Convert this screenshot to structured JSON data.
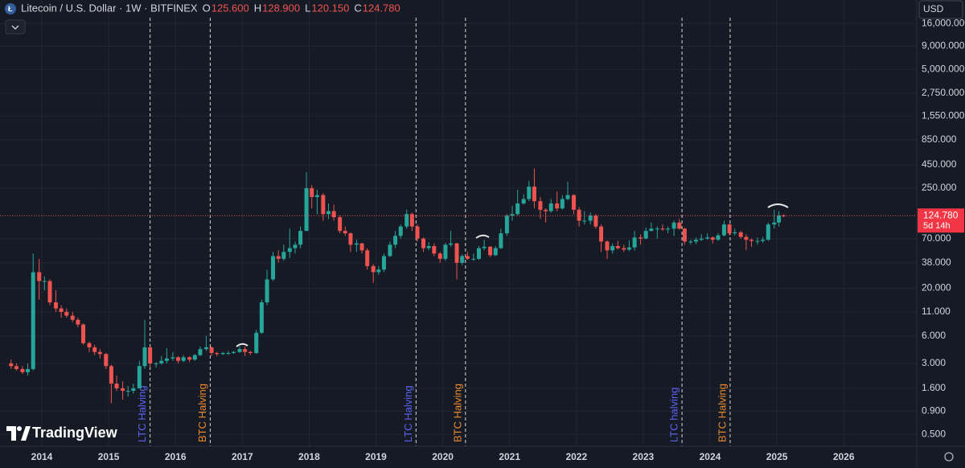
{
  "chart_data": {
    "type": "candlestick",
    "title": "Litecoin / U.S. Dollar · 1W · BITFINEX",
    "ohlc_keys": [
      "O",
      "H",
      "L",
      "C"
    ],
    "currency": "USD",
    "countdown": "5d 14h",
    "brand": "TradingView",
    "log_scale": true,
    "grid": true,
    "up_color": "#26a69a",
    "down_color": "#ef5350",
    "xlim": [
      2013.374,
      2027.093
    ],
    "xticks": [
      2014,
      2015,
      2016,
      2017,
      2018,
      2019,
      2020,
      2021,
      2022,
      2023,
      2024,
      2025,
      2026
    ],
    "ylim": [
      0.37,
      28900
    ],
    "yticks": [
      {
        "value": 16000,
        "label": "16,000.000"
      },
      {
        "value": 9000,
        "label": "9,000.000"
      },
      {
        "value": 5000,
        "label": "5,000.000"
      },
      {
        "value": 2750,
        "label": "2,750.000"
      },
      {
        "value": 1550,
        "label": "1,550.000"
      },
      {
        "value": 850,
        "label": "850.000"
      },
      {
        "value": 450,
        "label": "450.000"
      },
      {
        "value": 250,
        "label": "250.000"
      },
      {
        "value": 70,
        "label": "70.000"
      },
      {
        "value": 38,
        "label": "38.000"
      },
      {
        "value": 20,
        "label": "20.000"
      },
      {
        "value": 11,
        "label": "11.000"
      },
      {
        "value": 6,
        "label": "6.000"
      },
      {
        "value": 3,
        "label": "3.000"
      },
      {
        "value": 1.6,
        "label": "1.600"
      },
      {
        "value": 0.9,
        "label": "0.900"
      },
      {
        "value": 0.5,
        "label": "0.500"
      }
    ],
    "annotations": [
      {
        "x": 2015.62,
        "label": "LTC Halving",
        "color": "#5b63f0"
      },
      {
        "x": 2016.52,
        "label": "BTC Halving",
        "color": "#e88a2e"
      },
      {
        "x": 2019.6,
        "label": "LTC Halving",
        "color": "#5b63f0"
      },
      {
        "x": 2020.34,
        "label": "BTC Halving",
        "color": "#e88a2e"
      },
      {
        "x": 2023.58,
        "label": "LTC halving",
        "color": "#5b63f0"
      },
      {
        "x": 2024.3,
        "label": "BTC Halving",
        "color": "#e88a2e"
      }
    ],
    "candles": [
      {
        "x": 2013.54,
        "o": 3.0,
        "h": 3.3,
        "l": 2.6,
        "c": 2.8
      },
      {
        "x": 2013.62,
        "o": 2.8,
        "h": 3.0,
        "l": 2.5,
        "c": 2.6
      },
      {
        "x": 2013.71,
        "o": 2.6,
        "h": 2.8,
        "l": 2.3,
        "c": 2.4
      },
      {
        "x": 2013.79,
        "o": 2.4,
        "h": 3.0,
        "l": 2.2,
        "c": 2.6
      },
      {
        "x": 2013.87,
        "o": 2.6,
        "h": 48,
        "l": 2.5,
        "c": 30
      },
      {
        "x": 2013.96,
        "o": 30,
        "h": 42,
        "l": 15,
        "c": 24
      },
      {
        "x": 2014.04,
        "o": 24,
        "h": 27,
        "l": 19,
        "c": 24
      },
      {
        "x": 2014.12,
        "o": 24,
        "h": 25,
        "l": 13,
        "c": 14
      },
      {
        "x": 2014.21,
        "o": 14,
        "h": 19,
        "l": 11,
        "c": 12
      },
      {
        "x": 2014.29,
        "o": 12,
        "h": 13,
        "l": 9.5,
        "c": 11
      },
      {
        "x": 2014.37,
        "o": 11,
        "h": 12,
        "l": 9.5,
        "c": 10
      },
      {
        "x": 2014.46,
        "o": 10,
        "h": 11,
        "l": 8.5,
        "c": 9
      },
      {
        "x": 2014.54,
        "o": 9,
        "h": 9.5,
        "l": 7.5,
        "c": 8
      },
      {
        "x": 2014.62,
        "o": 8,
        "h": 8.2,
        "l": 4.8,
        "c": 5
      },
      {
        "x": 2014.71,
        "o": 5,
        "h": 5.2,
        "l": 4,
        "c": 4.5
      },
      {
        "x": 2014.79,
        "o": 4.5,
        "h": 4.8,
        "l": 3.7,
        "c": 4
      },
      {
        "x": 2014.87,
        "o": 4,
        "h": 4.3,
        "l": 3.4,
        "c": 3.8
      },
      {
        "x": 2014.96,
        "o": 3.8,
        "h": 3.9,
        "l": 2.6,
        "c": 2.8
      },
      {
        "x": 2015.04,
        "o": 2.8,
        "h": 2.9,
        "l": 1.1,
        "c": 1.8
      },
      {
        "x": 2015.12,
        "o": 1.8,
        "h": 2.2,
        "l": 1.5,
        "c": 1.6
      },
      {
        "x": 2015.21,
        "o": 1.6,
        "h": 1.9,
        "l": 1.2,
        "c": 1.5
      },
      {
        "x": 2015.29,
        "o": 1.5,
        "h": 1.7,
        "l": 1.3,
        "c": 1.5
      },
      {
        "x": 2015.37,
        "o": 1.5,
        "h": 1.8,
        "l": 1.4,
        "c": 1.6
      },
      {
        "x": 2015.46,
        "o": 1.6,
        "h": 3.2,
        "l": 1.6,
        "c": 2.8
      },
      {
        "x": 2015.54,
        "o": 2.8,
        "h": 9,
        "l": 2.6,
        "c": 4.5
      },
      {
        "x": 2015.62,
        "o": 4.5,
        "h": 4.6,
        "l": 2.7,
        "c": 3.0
      },
      {
        "x": 2015.71,
        "o": 3.0,
        "h": 3.1,
        "l": 2.7,
        "c": 3.0
      },
      {
        "x": 2015.79,
        "o": 3.0,
        "h": 3.6,
        "l": 2.9,
        "c": 3.2
      },
      {
        "x": 2015.87,
        "o": 3.2,
        "h": 4.4,
        "l": 3.0,
        "c": 3.4
      },
      {
        "x": 2015.96,
        "o": 3.4,
        "h": 4.0,
        "l": 3.2,
        "c": 3.5
      },
      {
        "x": 2016.04,
        "o": 3.5,
        "h": 3.6,
        "l": 3.0,
        "c": 3.2
      },
      {
        "x": 2016.12,
        "o": 3.2,
        "h": 3.7,
        "l": 3.1,
        "c": 3.5
      },
      {
        "x": 2016.21,
        "o": 3.5,
        "h": 3.6,
        "l": 3.1,
        "c": 3.3
      },
      {
        "x": 2016.29,
        "o": 3.3,
        "h": 3.8,
        "l": 3.2,
        "c": 3.7
      },
      {
        "x": 2016.37,
        "o": 3.7,
        "h": 4.6,
        "l": 3.6,
        "c": 4.3
      },
      {
        "x": 2016.46,
        "o": 4.3,
        "h": 6.0,
        "l": 4.1,
        "c": 4.5
      },
      {
        "x": 2016.54,
        "o": 4.5,
        "h": 4.6,
        "l": 3.6,
        "c": 3.9
      },
      {
        "x": 2016.62,
        "o": 3.9,
        "h": 4.0,
        "l": 3.6,
        "c": 3.8
      },
      {
        "x": 2016.71,
        "o": 3.8,
        "h": 4.0,
        "l": 3.7,
        "c": 3.9
      },
      {
        "x": 2016.79,
        "o": 3.9,
        "h": 4.1,
        "l": 3.7,
        "c": 3.9
      },
      {
        "x": 2016.87,
        "o": 3.9,
        "h": 4.1,
        "l": 3.8,
        "c": 4.0
      },
      {
        "x": 2016.96,
        "o": 4.0,
        "h": 4.6,
        "l": 3.9,
        "c": 4.3
      },
      {
        "x": 2017.04,
        "o": 4.3,
        "h": 4.6,
        "l": 3.6,
        "c": 4.0
      },
      {
        "x": 2017.12,
        "o": 4.0,
        "h": 4.1,
        "l": 3.7,
        "c": 3.9
      },
      {
        "x": 2017.21,
        "o": 3.9,
        "h": 7.0,
        "l": 3.8,
        "c": 6.5
      },
      {
        "x": 2017.29,
        "o": 6.5,
        "h": 15,
        "l": 6.3,
        "c": 14
      },
      {
        "x": 2017.37,
        "o": 14,
        "h": 32,
        "l": 13,
        "c": 25
      },
      {
        "x": 2017.46,
        "o": 25,
        "h": 50,
        "l": 24,
        "c": 45
      },
      {
        "x": 2017.54,
        "o": 45,
        "h": 52,
        "l": 38,
        "c": 42
      },
      {
        "x": 2017.62,
        "o": 42,
        "h": 60,
        "l": 40,
        "c": 50
      },
      {
        "x": 2017.71,
        "o": 50,
        "h": 90,
        "l": 43,
        "c": 55
      },
      {
        "x": 2017.79,
        "o": 55,
        "h": 65,
        "l": 48,
        "c": 60
      },
      {
        "x": 2017.87,
        "o": 60,
        "h": 95,
        "l": 55,
        "c": 85
      },
      {
        "x": 2017.96,
        "o": 85,
        "h": 375,
        "l": 85,
        "c": 250
      },
      {
        "x": 2018.04,
        "o": 250,
        "h": 270,
        "l": 150,
        "c": 200
      },
      {
        "x": 2018.12,
        "o": 200,
        "h": 240,
        "l": 130,
        "c": 210
      },
      {
        "x": 2018.21,
        "o": 210,
        "h": 220,
        "l": 110,
        "c": 130
      },
      {
        "x": 2018.29,
        "o": 130,
        "h": 170,
        "l": 115,
        "c": 140
      },
      {
        "x": 2018.37,
        "o": 140,
        "h": 165,
        "l": 110,
        "c": 120
      },
      {
        "x": 2018.46,
        "o": 120,
        "h": 125,
        "l": 80,
        "c": 85
      },
      {
        "x": 2018.54,
        "o": 85,
        "h": 95,
        "l": 75,
        "c": 80
      },
      {
        "x": 2018.62,
        "o": 80,
        "h": 82,
        "l": 50,
        "c": 60
      },
      {
        "x": 2018.71,
        "o": 60,
        "h": 68,
        "l": 50,
        "c": 62
      },
      {
        "x": 2018.79,
        "o": 62,
        "h": 63,
        "l": 48,
        "c": 52
      },
      {
        "x": 2018.87,
        "o": 52,
        "h": 55,
        "l": 32,
        "c": 35
      },
      {
        "x": 2018.96,
        "o": 35,
        "h": 37,
        "l": 23,
        "c": 30
      },
      {
        "x": 2019.04,
        "o": 30,
        "h": 35,
        "l": 28,
        "c": 32
      },
      {
        "x": 2019.12,
        "o": 32,
        "h": 48,
        "l": 30,
        "c": 45
      },
      {
        "x": 2019.21,
        "o": 45,
        "h": 65,
        "l": 44,
        "c": 60
      },
      {
        "x": 2019.29,
        "o": 60,
        "h": 85,
        "l": 55,
        "c": 75
      },
      {
        "x": 2019.37,
        "o": 75,
        "h": 100,
        "l": 70,
        "c": 95
      },
      {
        "x": 2019.46,
        "o": 95,
        "h": 145,
        "l": 90,
        "c": 130
      },
      {
        "x": 2019.54,
        "o": 130,
        "h": 135,
        "l": 85,
        "c": 95
      },
      {
        "x": 2019.62,
        "o": 95,
        "h": 100,
        "l": 65,
        "c": 70
      },
      {
        "x": 2019.71,
        "o": 70,
        "h": 72,
        "l": 50,
        "c": 55
      },
      {
        "x": 2019.79,
        "o": 55,
        "h": 64,
        "l": 52,
        "c": 58
      },
      {
        "x": 2019.87,
        "o": 58,
        "h": 62,
        "l": 45,
        "c": 48
      },
      {
        "x": 2019.96,
        "o": 48,
        "h": 50,
        "l": 38,
        "c": 42
      },
      {
        "x": 2020.04,
        "o": 42,
        "h": 63,
        "l": 40,
        "c": 60
      },
      {
        "x": 2020.12,
        "o": 60,
        "h": 85,
        "l": 57,
        "c": 62
      },
      {
        "x": 2020.21,
        "o": 62,
        "h": 63,
        "l": 25,
        "c": 38
      },
      {
        "x": 2020.29,
        "o": 38,
        "h": 47,
        "l": 36,
        "c": 45
      },
      {
        "x": 2020.37,
        "o": 45,
        "h": 50,
        "l": 41,
        "c": 42
      },
      {
        "x": 2020.46,
        "o": 42,
        "h": 48,
        "l": 40,
        "c": 42
      },
      {
        "x": 2020.54,
        "o": 42,
        "h": 58,
        "l": 41,
        "c": 55
      },
      {
        "x": 2020.62,
        "o": 55,
        "h": 68,
        "l": 52,
        "c": 57
      },
      {
        "x": 2020.71,
        "o": 57,
        "h": 58,
        "l": 44,
        "c": 46
      },
      {
        "x": 2020.79,
        "o": 46,
        "h": 58,
        "l": 45,
        "c": 55
      },
      {
        "x": 2020.87,
        "o": 55,
        "h": 90,
        "l": 54,
        "c": 80
      },
      {
        "x": 2020.96,
        "o": 80,
        "h": 130,
        "l": 75,
        "c": 125
      },
      {
        "x": 2021.04,
        "o": 125,
        "h": 160,
        "l": 110,
        "c": 130
      },
      {
        "x": 2021.12,
        "o": 130,
        "h": 240,
        "l": 125,
        "c": 170
      },
      {
        "x": 2021.21,
        "o": 170,
        "h": 215,
        "l": 165,
        "c": 190
      },
      {
        "x": 2021.29,
        "o": 190,
        "h": 300,
        "l": 180,
        "c": 260
      },
      {
        "x": 2021.37,
        "o": 260,
        "h": 410,
        "l": 150,
        "c": 180
      },
      {
        "x": 2021.46,
        "o": 180,
        "h": 200,
        "l": 115,
        "c": 145
      },
      {
        "x": 2021.54,
        "o": 145,
        "h": 150,
        "l": 105,
        "c": 140
      },
      {
        "x": 2021.62,
        "o": 140,
        "h": 190,
        "l": 135,
        "c": 170
      },
      {
        "x": 2021.71,
        "o": 170,
        "h": 230,
        "l": 140,
        "c": 150
      },
      {
        "x": 2021.79,
        "o": 150,
        "h": 210,
        "l": 145,
        "c": 190
      },
      {
        "x": 2021.87,
        "o": 190,
        "h": 295,
        "l": 185,
        "c": 210
      },
      {
        "x": 2021.96,
        "o": 210,
        "h": 215,
        "l": 130,
        "c": 145
      },
      {
        "x": 2022.04,
        "o": 145,
        "h": 155,
        "l": 95,
        "c": 110
      },
      {
        "x": 2022.12,
        "o": 110,
        "h": 140,
        "l": 100,
        "c": 110
      },
      {
        "x": 2022.21,
        "o": 110,
        "h": 135,
        "l": 100,
        "c": 125
      },
      {
        "x": 2022.29,
        "o": 125,
        "h": 130,
        "l": 90,
        "c": 95
      },
      {
        "x": 2022.37,
        "o": 95,
        "h": 100,
        "l": 50,
        "c": 65
      },
      {
        "x": 2022.46,
        "o": 65,
        "h": 67,
        "l": 42,
        "c": 52
      },
      {
        "x": 2022.54,
        "o": 52,
        "h": 62,
        "l": 48,
        "c": 58
      },
      {
        "x": 2022.62,
        "o": 58,
        "h": 66,
        "l": 53,
        "c": 55
      },
      {
        "x": 2022.71,
        "o": 55,
        "h": 60,
        "l": 50,
        "c": 53
      },
      {
        "x": 2022.79,
        "o": 53,
        "h": 67,
        "l": 51,
        "c": 56
      },
      {
        "x": 2022.87,
        "o": 56,
        "h": 85,
        "l": 52,
        "c": 72
      },
      {
        "x": 2022.96,
        "o": 72,
        "h": 78,
        "l": 60,
        "c": 70
      },
      {
        "x": 2023.04,
        "o": 70,
        "h": 92,
        "l": 69,
        "c": 85
      },
      {
        "x": 2023.12,
        "o": 85,
        "h": 105,
        "l": 84,
        "c": 90
      },
      {
        "x": 2023.21,
        "o": 90,
        "h": 95,
        "l": 70,
        "c": 90
      },
      {
        "x": 2023.29,
        "o": 90,
        "h": 100,
        "l": 85,
        "c": 88
      },
      {
        "x": 2023.37,
        "o": 88,
        "h": 95,
        "l": 80,
        "c": 90
      },
      {
        "x": 2023.46,
        "o": 90,
        "h": 110,
        "l": 75,
        "c": 105
      },
      {
        "x": 2023.54,
        "o": 105,
        "h": 115,
        "l": 88,
        "c": 90
      },
      {
        "x": 2023.62,
        "o": 90,
        "h": 92,
        "l": 60,
        "c": 65
      },
      {
        "x": 2023.71,
        "o": 65,
        "h": 68,
        "l": 60,
        "c": 65
      },
      {
        "x": 2023.79,
        "o": 65,
        "h": 72,
        "l": 61,
        "c": 68
      },
      {
        "x": 2023.87,
        "o": 68,
        "h": 78,
        "l": 66,
        "c": 70
      },
      {
        "x": 2023.96,
        "o": 70,
        "h": 80,
        "l": 68,
        "c": 72
      },
      {
        "x": 2024.04,
        "o": 72,
        "h": 74,
        "l": 62,
        "c": 68
      },
      {
        "x": 2024.12,
        "o": 68,
        "h": 80,
        "l": 66,
        "c": 76
      },
      {
        "x": 2024.21,
        "o": 76,
        "h": 110,
        "l": 74,
        "c": 100
      },
      {
        "x": 2024.29,
        "o": 100,
        "h": 102,
        "l": 76,
        "c": 80
      },
      {
        "x": 2024.37,
        "o": 80,
        "h": 90,
        "l": 76,
        "c": 82
      },
      {
        "x": 2024.46,
        "o": 82,
        "h": 85,
        "l": 70,
        "c": 73
      },
      {
        "x": 2024.54,
        "o": 73,
        "h": 78,
        "l": 52,
        "c": 68
      },
      {
        "x": 2024.62,
        "o": 68,
        "h": 70,
        "l": 57,
        "c": 66
      },
      {
        "x": 2024.71,
        "o": 66,
        "h": 72,
        "l": 60,
        "c": 66
      },
      {
        "x": 2024.79,
        "o": 66,
        "h": 73,
        "l": 63,
        "c": 68
      },
      {
        "x": 2024.87,
        "o": 68,
        "h": 105,
        "l": 66,
        "c": 100
      },
      {
        "x": 2024.96,
        "o": 100,
        "h": 145,
        "l": 90,
        "c": 105
      },
      {
        "x": 2025.03,
        "o": 105,
        "h": 140,
        "l": 95,
        "c": 125.6
      },
      {
        "x": 2025.1,
        "o": 125.6,
        "h": 128.9,
        "l": 120.15,
        "c": 124.78,
        "value_labels": {
          "o": "125.600",
          "h": "128.900",
          "l": "120.150",
          "c": "124.780"
        }
      }
    ]
  }
}
